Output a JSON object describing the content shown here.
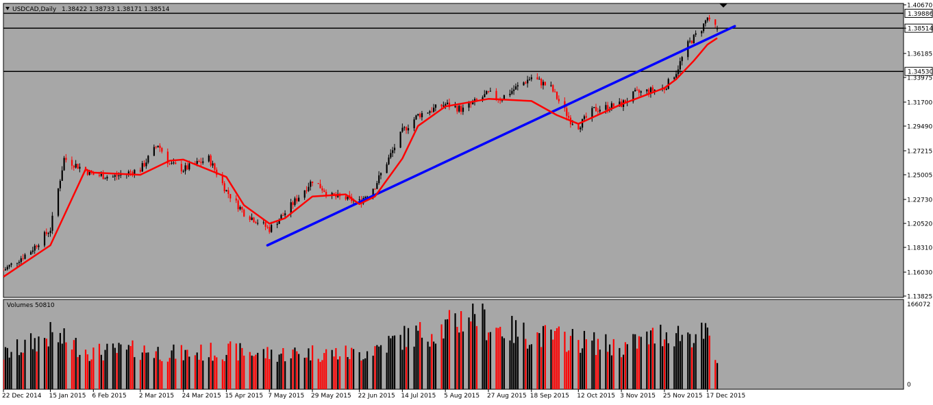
{
  "colors": {
    "background": "#a7a7a7",
    "bull_candle": "#000000",
    "bear_candle": "#ff0000",
    "ma_line": "#ff0000",
    "trendline": "#0000ff",
    "hline": "#000000",
    "volume_up": "#000000",
    "volume_down": "#ff0000"
  },
  "header": {
    "symbol_period": "USDCAD,Daily",
    "ohlc": "1.38422 1.38733 1.38171 1.38514"
  },
  "volume_panel": {
    "label": "Volumes 50810",
    "axis_max_label": "166072",
    "axis_min_label": "0"
  },
  "chart_data": [
    {
      "type": "candlestick",
      "instrument": "USDCAD",
      "timeframe": "Daily",
      "last_ohlc": {
        "open": 1.38422,
        "high": 1.38733,
        "low": 1.38171,
        "close": 1.38514
      },
      "ylim": [
        1.13825,
        1.4067
      ],
      "y_ticks": [
        "1.40670",
        "1.38514",
        "1.36185",
        "1.33975",
        "1.31700",
        "1.29490",
        "1.27215",
        "1.25005",
        "1.22730",
        "1.20520",
        "1.18310",
        "1.16030",
        "1.13825"
      ],
      "x_tick_labels": [
        "22 Dec 2014",
        "15 Jan 2015",
        "6 Feb 2015",
        "2 Mar 2015",
        "24 Mar 2015",
        "15 Apr 2015",
        "7 May 2015",
        "29 May 2015",
        "22 Jun 2015",
        "14 Jul 2015",
        "5 Aug 2015",
        "27 Aug 2015",
        "18 Sep 2015",
        "12 Oct 2015",
        "3 Nov 2015",
        "25 Nov 2015",
        "17 Dec 2015"
      ],
      "horizontal_levels": [
        {
          "value": 1.39886,
          "label": "1.39886"
        },
        {
          "value": 1.38514,
          "label": "1.38514"
        },
        {
          "value": 1.3453,
          "label": "1.34530"
        }
      ],
      "trendline": {
        "from": [
          "6 May 2015",
          1.185
        ],
        "to": [
          "31 Dec 2015",
          1.387
        ]
      },
      "close_series": {
        "x": [
          "22 Dec 2014",
          "5 Jan 2015",
          "15 Jan 2015",
          "22 Jan 2015",
          "6 Feb 2015",
          "16 Feb 2015",
          "2 Mar 2015",
          "11 Mar 2015",
          "17 Mar 2015",
          "24 Mar 2015",
          "6 Apr 2015",
          "15 Apr 2015",
          "24 Apr 2015",
          "7 May 2015",
          "15 May 2015",
          "29 May 2015",
          "8 Jun 2015",
          "16 Jun 2015",
          "22 Jun 2015",
          "30 Jun 2015",
          "14 Jul 2015",
          "22 Jul 2015",
          "5 Aug 2015",
          "14 Aug 2015",
          "27 Aug 2015",
          "2 Sep 2015",
          "18 Sep 2015",
          "28 Sep 2015",
          "8 Oct 2015",
          "12 Oct 2015",
          "20 Oct 2015",
          "3 Nov 2015",
          "10 Nov 2015",
          "25 Nov 2015",
          "1 Dec 2015",
          "7 Dec 2015",
          "14 Dec 2015",
          "17 Dec 2015",
          "18 Dec 2015",
          "22 Dec 2015"
        ],
        "y": [
          1.162,
          1.18,
          1.2,
          1.265,
          1.25,
          1.248,
          1.255,
          1.278,
          1.26,
          1.255,
          1.265,
          1.235,
          1.215,
          1.2,
          1.215,
          1.245,
          1.23,
          1.228,
          1.225,
          1.24,
          1.29,
          1.305,
          1.315,
          1.31,
          1.325,
          1.32,
          1.34,
          1.33,
          1.3,
          1.295,
          1.31,
          1.315,
          1.325,
          1.33,
          1.345,
          1.37,
          1.385,
          1.395,
          1.39,
          1.3851
        ]
      },
      "moving_average": {
        "x": [
          "22 Dec 2014",
          "15 Jan 2015",
          "2 Feb 2015",
          "6 Feb 2015",
          "2 Mar 2015",
          "17 Mar 2015",
          "24 Mar 2015",
          "15 Apr 2015",
          "24 Apr 2015",
          "7 May 2015",
          "15 May 2015",
          "29 May 2015",
          "15 Jun 2015",
          "22 Jun 2015",
          "30 Jun 2015",
          "14 Jul 2015",
          "22 Jul 2015",
          "5 Aug 2015",
          "27 Aug 2015",
          "18 Sep 2015",
          "1 Oct 2015",
          "12 Oct 2015",
          "3 Nov 2015",
          "25 Nov 2015",
          "1 Dec 2015",
          "10 Dec 2015",
          "17 Dec 2015",
          "22 Dec 2015"
        ],
        "y": [
          1.156,
          1.185,
          1.255,
          1.252,
          1.25,
          1.263,
          1.264,
          1.248,
          1.222,
          1.205,
          1.21,
          1.23,
          1.232,
          1.223,
          1.23,
          1.265,
          1.295,
          1.313,
          1.32,
          1.318,
          1.305,
          1.297,
          1.315,
          1.33,
          1.338,
          1.355,
          1.37,
          1.376
        ]
      },
      "volume": {
        "ylim": [
          0,
          166072
        ],
        "last": 50810,
        "x": [
          "22 Dec 2014",
          "15 Jan 2015",
          "6 Feb 2015",
          "2 Mar 2015",
          "24 Mar 2015",
          "15 Apr 2015",
          "7 May 2015",
          "29 May 2015",
          "22 Jun 2015",
          "14 Jul 2015",
          "5 Aug 2015",
          "20 Aug 2015",
          "27 Aug 2015",
          "18 Sep 2015",
          "12 Oct 2015",
          "3 Nov 2015",
          "25 Nov 2015",
          "17 Dec 2015",
          "22 Dec 2015"
        ],
        "values": [
          70000,
          110000,
          75000,
          80000,
          72000,
          78000,
          72000,
          75000,
          72000,
          105000,
          125000,
          160000,
          130000,
          110000,
          100000,
          85000,
          115000,
          110000,
          50810
        ]
      }
    }
  ]
}
